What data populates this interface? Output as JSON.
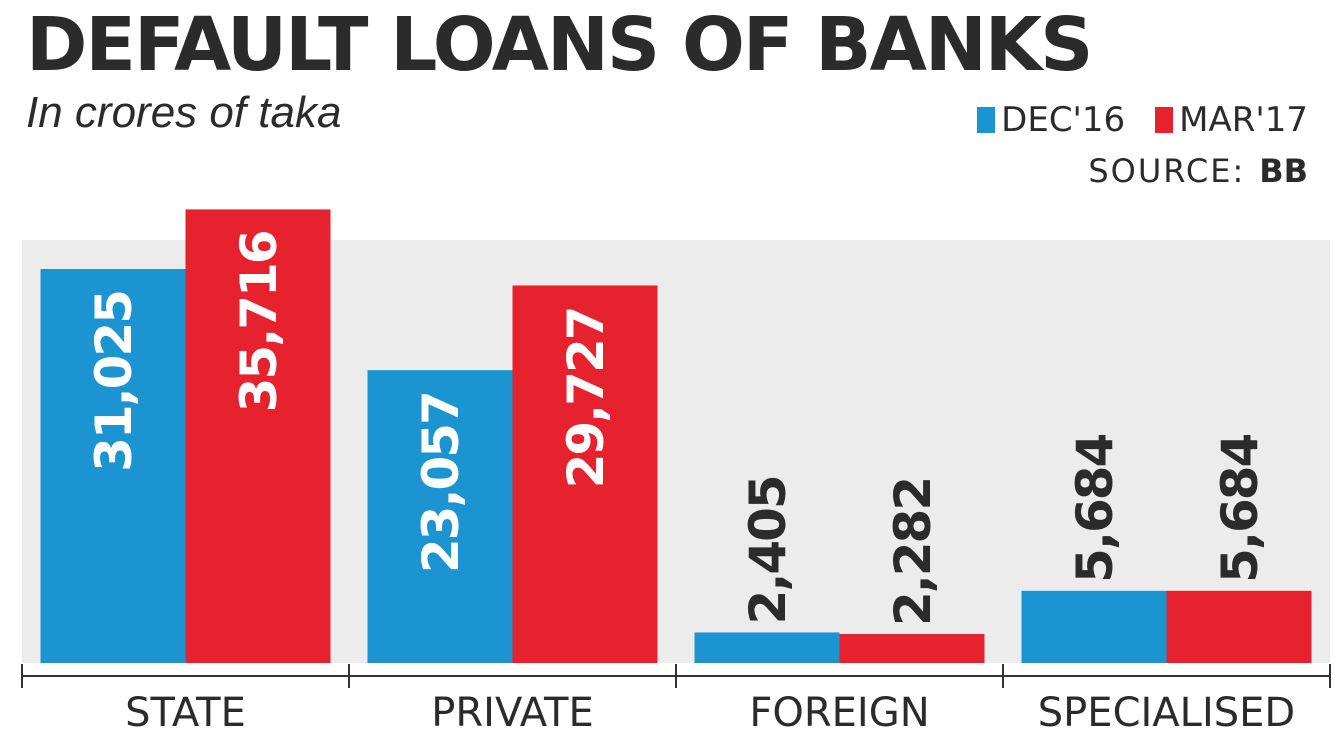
{
  "header": {
    "title": "DEFAULT LOANS OF BANKS",
    "subtitle": "In crores of taka",
    "source_label": "SOURCE:",
    "source_value": "BB"
  },
  "legend": [
    {
      "label": "DEC'16",
      "color": "#1c94d2"
    },
    {
      "label": "MAR'17",
      "color": "#e5222e"
    }
  ],
  "chart_data": {
    "type": "bar",
    "title": "DEFAULT LOANS OF BANKS",
    "subtitle": "In crores of taka",
    "categories": [
      "STATE",
      "PRIVATE",
      "FOREIGN",
      "SPECIALISED"
    ],
    "series": [
      {
        "name": "DEC'16",
        "values": [
          31025,
          23057,
          2405,
          5684
        ],
        "labels": [
          "31,025",
          "23,057",
          "2,405",
          "5,684"
        ],
        "color": "#1c94d2"
      },
      {
        "name": "MAR'17",
        "values": [
          35716,
          29727,
          2282,
          5684
        ],
        "labels": [
          "35,716",
          "29,727",
          "2,282",
          "5,684"
        ],
        "color": "#e5222e"
      }
    ],
    "ylim": [
      0,
      40000
    ],
    "grid": false,
    "legend_position": "top-right",
    "bar_shading_color": "#ececec"
  }
}
